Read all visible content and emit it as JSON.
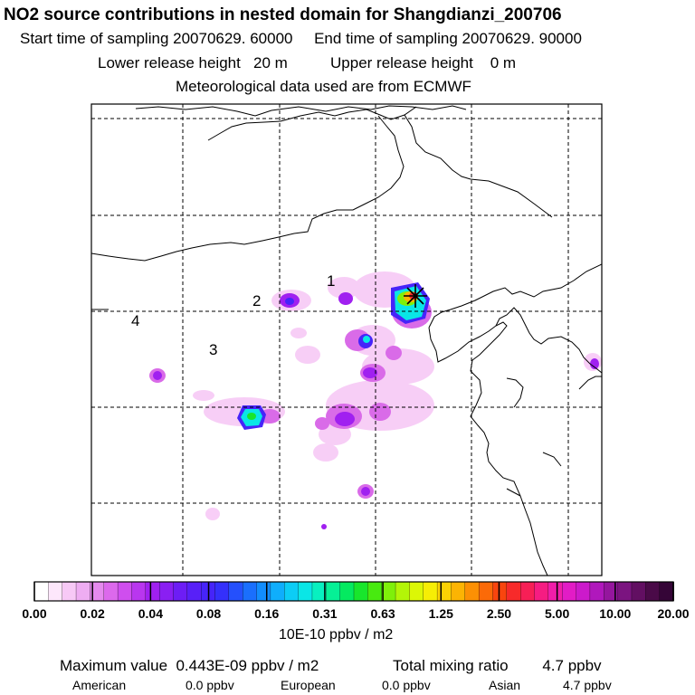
{
  "header": {
    "title": "NO2 source contributions in nested domain for Shangdianzi_200706",
    "sampling": "Start time of sampling 20070629. 60000     End time of sampling 20070629. 90000",
    "release": "Lower release height   20 m          Upper release height    0 m",
    "met": "Meteorological data used are from ECMWF"
  },
  "map": {
    "region_labels": [
      "1",
      "2",
      "3",
      "4"
    ],
    "receptor_marker": "asterisk-marker",
    "colors": {
      "background": "#ffffff",
      "border": "#000000",
      "grid": "#000000",
      "coast": "#000000"
    }
  },
  "colorbar": {
    "ticks": [
      "0.00",
      "0.02",
      "0.04",
      "0.08",
      "0.16",
      "0.31",
      "0.63",
      "1.25",
      "2.50",
      "5.00",
      "10.00",
      "20.00"
    ],
    "unit": "10E-10 ppbv / m2",
    "colors": [
      "#ffffff",
      "#fde7fb",
      "#f7c9f6",
      "#eeadf2",
      "#e58aee",
      "#dc69ec",
      "#cf4eee",
      "#b936ef",
      "#a020f0",
      "#8a1ff2",
      "#6d1df5",
      "#5820f7",
      "#4624f9",
      "#3430fb",
      "#2550fc",
      "#1a6ffd",
      "#128dfd",
      "#0faefc",
      "#0ccdf5",
      "#0ae6e6",
      "#08f0c0",
      "#06f096",
      "#05ea60",
      "#18e62c",
      "#48ea10",
      "#7ff00a",
      "#b3f508",
      "#dcf706",
      "#f6ee05",
      "#fbd204",
      "#fcb403",
      "#fc9004",
      "#fb6a08",
      "#f9450e",
      "#f72a2a",
      "#f71f56",
      "#f61c82",
      "#f01da9",
      "#e21cc6",
      "#cc1acb",
      "#b018bc",
      "#95169e",
      "#7b1480",
      "#620f62",
      "#4a0a48",
      "#350537"
    ]
  },
  "summary": {
    "max_label": "Maximum value  0.443E-09 ppbv / m2",
    "total_label": "Total mixing ratio        4.7 ppbv",
    "american_label": "American",
    "american_value": "0.0 ppbv",
    "european_label": "European",
    "european_value": "0.0 ppbv",
    "asian_label": "Asian",
    "asian_value": "4.7 ppbv"
  }
}
